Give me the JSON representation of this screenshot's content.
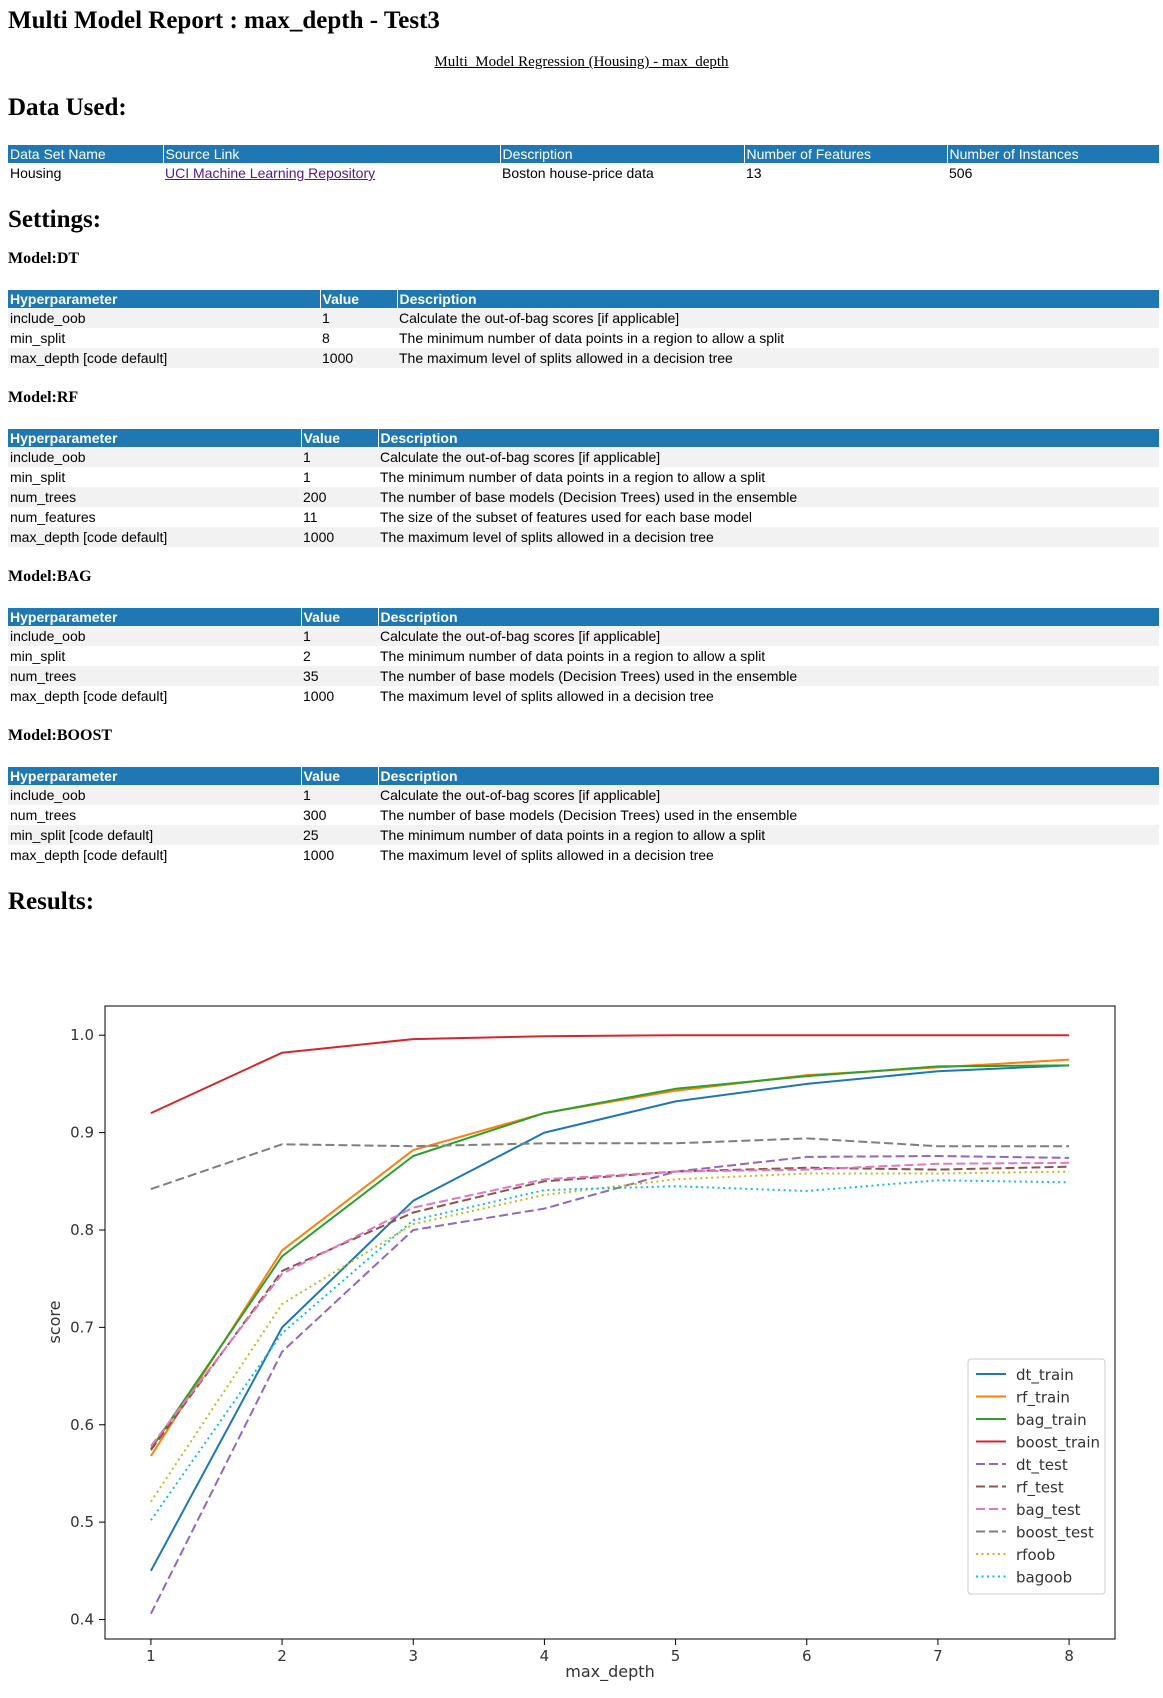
{
  "page": {
    "title": "Multi Model Report : max_depth - Test3",
    "subtitle_link": "Multi_Model Regression (Housing) - max_depth"
  },
  "data_used": {
    "heading": "Data Used:",
    "headers": [
      "Data Set Name",
      "Source Link",
      "Description",
      "Number of Features",
      "Number of Instances"
    ],
    "row": {
      "name": "Housing",
      "source": "UCI Machine Learning Repository",
      "description": "Boston house-price data",
      "features": "13",
      "instances": "506"
    }
  },
  "settings": {
    "heading": "Settings:",
    "headers": [
      "Hyperparameter",
      "Value",
      "Description"
    ],
    "models": [
      {
        "title": "Model:DT",
        "rows": [
          [
            "include_oob",
            "1",
            "Calculate the out-of-bag scores [if applicable]"
          ],
          [
            "min_split",
            "8",
            "The minimum number of data points in a region to allow a split"
          ],
          [
            "max_depth [code default]",
            "1000",
            "The maximum level of splits allowed in a decision tree"
          ]
        ]
      },
      {
        "title": "Model:RF",
        "rows": [
          [
            "include_oob",
            "1",
            "Calculate the out-of-bag scores [if applicable]"
          ],
          [
            "min_split",
            "1",
            "The minimum number of data points in a region to allow a split"
          ],
          [
            "num_trees",
            "200",
            "The number of base models (Decision Trees) used in the ensemble"
          ],
          [
            "num_features",
            "11",
            "The size of the subset of features used for each base model"
          ],
          [
            "max_depth [code default]",
            "1000",
            "The maximum level of splits allowed in a decision tree"
          ]
        ]
      },
      {
        "title": "Model:BAG",
        "rows": [
          [
            "include_oob",
            "1",
            "Calculate the out-of-bag scores [if applicable]"
          ],
          [
            "min_split",
            "2",
            "The minimum number of data points in a region to allow a split"
          ],
          [
            "num_trees",
            "35",
            "The number of base models (Decision Trees) used in the ensemble"
          ],
          [
            "max_depth [code default]",
            "1000",
            "The maximum level of splits allowed in a decision tree"
          ]
        ]
      },
      {
        "title": "Model:BOOST",
        "rows": [
          [
            "include_oob",
            "1",
            "Calculate the out-of-bag scores [if applicable]"
          ],
          [
            "num_trees",
            "300",
            "The number of base models (Decision Trees) used in the ensemble"
          ],
          [
            "min_split [code default]",
            "25",
            "The minimum number of data points in a region to allow a split"
          ],
          [
            "max_depth [code default]",
            "1000",
            "The maximum level of splits allowed in a decision tree"
          ]
        ]
      }
    ]
  },
  "results": {
    "heading": "Results:"
  },
  "chart_data": {
    "type": "line",
    "title": "",
    "xlabel": "max_depth",
    "ylabel": "score",
    "x": [
      1,
      2,
      3,
      4,
      5,
      6,
      7,
      8
    ],
    "xlim": [
      0.65,
      8.35
    ],
    "ylim": [
      0.38,
      1.03
    ],
    "yticks": [
      0.4,
      0.5,
      0.6,
      0.7,
      0.8,
      0.9,
      1.0
    ],
    "yticklabels": [
      "0.4",
      "0.5",
      "0.6",
      "0.7",
      "0.8",
      "0.9",
      "1.0"
    ],
    "grid": false,
    "legend_position": "lower-right",
    "series": [
      {
        "name": "dt_train",
        "color": "#1f77b4",
        "dash": "solid",
        "values": [
          0.45,
          0.7,
          0.83,
          0.9,
          0.932,
          0.95,
          0.963,
          0.969
        ]
      },
      {
        "name": "rf_train",
        "color": "#ff7f0e",
        "dash": "solid",
        "values": [
          0.568,
          0.779,
          0.882,
          0.92,
          0.943,
          0.959,
          0.967,
          0.975
        ]
      },
      {
        "name": "bag_train",
        "color": "#2ca02c",
        "dash": "solid",
        "values": [
          0.575,
          0.773,
          0.876,
          0.92,
          0.945,
          0.958,
          0.968,
          0.969
        ]
      },
      {
        "name": "boost_train",
        "color": "#d62728",
        "dash": "solid",
        "values": [
          0.92,
          0.982,
          0.996,
          0.999,
          1.0,
          1.0,
          1.0,
          1.0
        ]
      },
      {
        "name": "dt_test",
        "color": "#9467bd",
        "dash": "dashed",
        "values": [
          0.406,
          0.675,
          0.8,
          0.822,
          0.86,
          0.875,
          0.876,
          0.874
        ]
      },
      {
        "name": "rf_test",
        "color": "#8c564b",
        "dash": "dashed",
        "values": [
          0.574,
          0.758,
          0.818,
          0.85,
          0.86,
          0.864,
          0.862,
          0.865
        ]
      },
      {
        "name": "bag_test",
        "color": "#e377c2",
        "dash": "dashed",
        "values": [
          0.578,
          0.755,
          0.823,
          0.852,
          0.86,
          0.862,
          0.868,
          0.869
        ]
      },
      {
        "name": "boost_test",
        "color": "#7f7f7f",
        "dash": "dashed",
        "values": [
          0.842,
          0.888,
          0.886,
          0.889,
          0.889,
          0.894,
          0.886,
          0.886
        ]
      },
      {
        "name": "rfoob",
        "color": "#bcbd22",
        "dash": "dotted",
        "values": [
          0.521,
          0.724,
          0.806,
          0.836,
          0.852,
          0.858,
          0.858,
          0.86
        ]
      },
      {
        "name": "bagoob",
        "color": "#17becf",
        "dash": "dotted",
        "values": [
          0.502,
          0.694,
          0.81,
          0.841,
          0.845,
          0.84,
          0.851,
          0.849
        ]
      }
    ]
  }
}
